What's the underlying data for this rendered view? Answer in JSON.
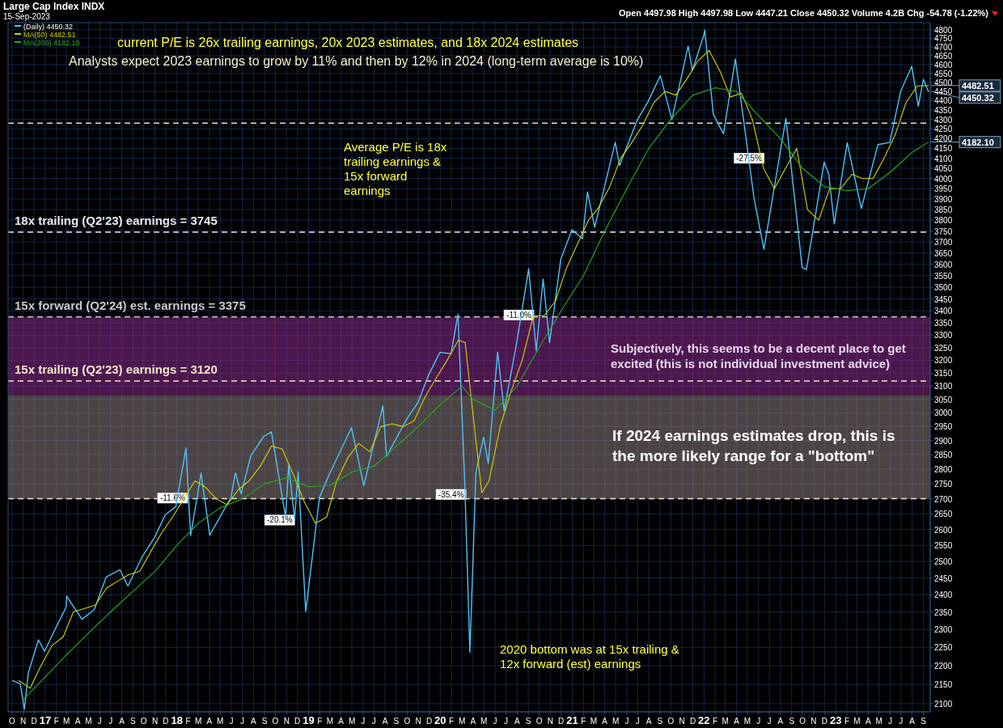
{
  "chart_data": {
    "type": "line",
    "title": "Large Cap Index INDX",
    "subtitle": "15-Sep-2023",
    "log": true,
    "grid": true,
    "legend": "top left",
    "tick_labels": "xy",
    "xlim": [
      "2016-09-20",
      "2023-09-20"
    ],
    "ylim": [
      2079,
      4842
    ],
    "xticks": [
      {
        "value": "2016-10",
        "label": "O"
      },
      {
        "value": "2016-11",
        "label": "N"
      },
      {
        "value": "2016-12",
        "label": "D"
      },
      {
        "value": "2017-01",
        "label": "17"
      },
      {
        "value": "2017-02",
        "label": "F"
      },
      {
        "value": "2017-03",
        "label": "M"
      },
      {
        "value": "2017-04",
        "label": "A"
      },
      {
        "value": "2017-05",
        "label": "M"
      },
      {
        "value": "2017-06",
        "label": "J"
      },
      {
        "value": "2017-07",
        "label": "J"
      },
      {
        "value": "2017-08",
        "label": "A"
      },
      {
        "value": "2017-09",
        "label": "S"
      },
      {
        "value": "2017-10",
        "label": "O"
      },
      {
        "value": "2017-11",
        "label": "N"
      },
      {
        "value": "2017-12",
        "label": "D"
      },
      {
        "value": "2018-01",
        "label": "18"
      },
      {
        "value": "2018-02",
        "label": "F"
      },
      {
        "value": "2018-03",
        "label": "M"
      },
      {
        "value": "2018-04",
        "label": "A"
      },
      {
        "value": "2018-05",
        "label": "M"
      },
      {
        "value": "2018-06",
        "label": "J"
      },
      {
        "value": "2018-07",
        "label": "J"
      },
      {
        "value": "2018-08",
        "label": "A"
      },
      {
        "value": "2018-09",
        "label": "S"
      },
      {
        "value": "2018-10",
        "label": "O"
      },
      {
        "value": "2018-11",
        "label": "N"
      },
      {
        "value": "2018-12",
        "label": "D"
      },
      {
        "value": "2019-01",
        "label": "19"
      },
      {
        "value": "2019-02",
        "label": "F"
      },
      {
        "value": "2019-03",
        "label": "M"
      },
      {
        "value": "2019-04",
        "label": "A"
      },
      {
        "value": "2019-05",
        "label": "M"
      },
      {
        "value": "2019-06",
        "label": "J"
      },
      {
        "value": "2019-07",
        "label": "J"
      },
      {
        "value": "2019-08",
        "label": "A"
      },
      {
        "value": "2019-09",
        "label": "S"
      },
      {
        "value": "2019-10",
        "label": "O"
      },
      {
        "value": "2019-11",
        "label": "N"
      },
      {
        "value": "2019-12",
        "label": "D"
      },
      {
        "value": "2020-01",
        "label": "20"
      },
      {
        "value": "2020-02",
        "label": "F"
      },
      {
        "value": "2020-03",
        "label": "M"
      },
      {
        "value": "2020-04",
        "label": "A"
      },
      {
        "value": "2020-05",
        "label": "M"
      },
      {
        "value": "2020-06",
        "label": "J"
      },
      {
        "value": "2020-07",
        "label": "J"
      },
      {
        "value": "2020-08",
        "label": "A"
      },
      {
        "value": "2020-09",
        "label": "S"
      },
      {
        "value": "2020-10",
        "label": "O"
      },
      {
        "value": "2020-11",
        "label": "N"
      },
      {
        "value": "2020-12",
        "label": "D"
      },
      {
        "value": "2021-01",
        "label": "21"
      },
      {
        "value": "2021-02",
        "label": "F"
      },
      {
        "value": "2021-03",
        "label": "M"
      },
      {
        "value": "2021-04",
        "label": "A"
      },
      {
        "value": "2021-05",
        "label": "M"
      },
      {
        "value": "2021-06",
        "label": "J"
      },
      {
        "value": "2021-07",
        "label": "J"
      },
      {
        "value": "2021-08",
        "label": "A"
      },
      {
        "value": "2021-09",
        "label": "S"
      },
      {
        "value": "2021-10",
        "label": "O"
      },
      {
        "value": "2021-11",
        "label": "N"
      },
      {
        "value": "2021-12",
        "label": "D"
      },
      {
        "value": "2022-01",
        "label": "22"
      },
      {
        "value": "2022-02",
        "label": "F"
      },
      {
        "value": "2022-03",
        "label": "M"
      },
      {
        "value": "2022-04",
        "label": "A"
      },
      {
        "value": "2022-05",
        "label": "M"
      },
      {
        "value": "2022-06",
        "label": "J"
      },
      {
        "value": "2022-07",
        "label": "J"
      },
      {
        "value": "2022-08",
        "label": "A"
      },
      {
        "value": "2022-09",
        "label": "S"
      },
      {
        "value": "2022-10",
        "label": "O"
      },
      {
        "value": "2022-11",
        "label": "N"
      },
      {
        "value": "2022-12",
        "label": "D"
      },
      {
        "value": "2023-01",
        "label": "23"
      },
      {
        "value": "2023-02",
        "label": "F"
      },
      {
        "value": "2023-03",
        "label": "M"
      },
      {
        "value": "2023-04",
        "label": "A"
      },
      {
        "value": "2023-05",
        "label": "M"
      },
      {
        "value": "2023-06",
        "label": "J"
      },
      {
        "value": "2023-07",
        "label": "J"
      },
      {
        "value": "2023-08",
        "label": "A"
      },
      {
        "value": "2023-09",
        "label": "S"
      }
    ],
    "yticks": [
      2100,
      2150,
      2200,
      2250,
      2300,
      2350,
      2400,
      2450,
      2500,
      2550,
      2600,
      2650,
      2700,
      2750,
      2800,
      2850,
      2900,
      2950,
      3000,
      3050,
      3100,
      3150,
      3200,
      3250,
      3300,
      3350,
      3400,
      3450,
      3500,
      3550,
      3600,
      3650,
      3700,
      3750,
      3800,
      3850,
      3900,
      3950,
      4000,
      4050,
      4100,
      4150,
      4200,
      4250,
      4300,
      4350,
      4400,
      4450,
      4500,
      4550,
      4600,
      4650,
      4700,
      4750,
      4800
    ],
    "series": [
      {
        "name": "(Daily) 4450.32",
        "color": "#4fc3f7",
        "x": [
          "2016-10-03",
          "2016-10-24",
          "2016-11-04",
          "2016-11-15",
          "2016-12-13",
          "2016-12-30",
          "2017-01-26",
          "2017-02-28",
          "2017-03-01",
          "2017-04-13",
          "2017-05-17",
          "2017-06-19",
          "2017-07-27",
          "2017-08-18",
          "2017-09-29",
          "2017-10-31",
          "2017-11-30",
          "2017-12-29",
          "2018-01-26",
          "2018-02-08",
          "2018-03-09",
          "2018-04-02",
          "2018-05-31",
          "2018-06-12",
          "2018-06-28",
          "2018-07-25",
          "2018-08-29",
          "2018-09-20",
          "2018-10-29",
          "2018-11-07",
          "2018-11-23",
          "2018-12-03",
          "2018-12-24",
          "2019-01-31",
          "2019-02-28",
          "2019-04-30",
          "2019-06-03",
          "2019-07-26",
          "2019-08-05",
          "2019-09-30",
          "2019-10-31",
          "2019-11-29",
          "2019-12-31",
          "2020-01-31",
          "2020-02-19",
          "2020-03-09",
          "2020-03-23",
          "2020-04-09",
          "2020-04-30",
          "2020-05-13",
          "2020-06-08",
          "2020-06-26",
          "2020-07-31",
          "2020-09-02",
          "2020-09-23",
          "2020-10-12",
          "2020-10-30",
          "2020-11-30",
          "2020-12-31",
          "2021-01-29",
          "2021-02-12",
          "2021-03-04",
          "2021-04-30",
          "2021-05-12",
          "2021-06-30",
          "2021-07-30",
          "2021-09-02",
          "2021-10-04",
          "2021-11-18",
          "2021-11-30",
          "2021-12-31",
          "2022-01-03",
          "2022-01-27",
          "2022-02-24",
          "2022-03-29",
          "2022-05-20",
          "2022-06-16",
          "2022-08-16",
          "2022-09-30",
          "2022-10-12",
          "2022-11-30",
          "2022-12-13",
          "2022-12-28",
          "2023-02-02",
          "2023-03-13",
          "2023-04-28",
          "2023-05-31",
          "2023-06-30",
          "2023-07-31",
          "2023-08-18",
          "2023-09-01",
          "2023-09-15"
        ],
        "values": [
          2160,
          2151,
          2085,
          2180,
          2271,
          2239,
          2296,
          2364,
          2396,
          2329,
          2357,
          2453,
          2475,
          2426,
          2519,
          2575,
          2648,
          2674,
          2873,
          2581,
          2786,
          2582,
          2705,
          2787,
          2716,
          2846,
          2914,
          2931,
          2641,
          2814,
          2633,
          2790,
          2351,
          2704,
          2784,
          2946,
          2744,
          3026,
          2844,
          2977,
          3038,
          3141,
          3231,
          3226,
          3386,
          2747,
          2237,
          2790,
          2912,
          2820,
          3232,
          3009,
          3271,
          3580,
          3237,
          3535,
          3270,
          3622,
          3756,
          3714,
          3934,
          3768,
          4181,
          4063,
          4297,
          4395,
          4537,
          4300,
          4704,
          4567,
          4766,
          4797,
          4326,
          4225,
          4631,
          3901,
          3667,
          4305,
          3586,
          3577,
          4080,
          4019,
          3783,
          4179,
          3855,
          4169,
          4180,
          4450,
          4589,
          4370,
          4516,
          4450
        ]
      },
      {
        "name": "MA(50) 4482.51",
        "color": "#d4d400",
        "x": [
          "2016-10-20",
          "2016-11-20",
          "2016-12-20",
          "2017-01-20",
          "2017-02-20",
          "2017-03-20",
          "2017-04-20",
          "2017-05-20",
          "2017-06-20",
          "2017-07-20",
          "2017-08-20",
          "2017-09-20",
          "2017-10-20",
          "2017-11-20",
          "2017-12-20",
          "2018-01-20",
          "2018-02-20",
          "2018-03-20",
          "2018-04-20",
          "2018-05-20",
          "2018-06-20",
          "2018-07-20",
          "2018-08-20",
          "2018-09-20",
          "2018-10-20",
          "2018-11-20",
          "2018-12-20",
          "2019-01-20",
          "2019-02-20",
          "2019-03-20",
          "2019-04-20",
          "2019-05-20",
          "2019-06-20",
          "2019-07-20",
          "2019-08-20",
          "2019-09-20",
          "2019-10-20",
          "2019-11-20",
          "2019-12-20",
          "2020-01-20",
          "2020-02-20",
          "2020-03-10",
          "2020-04-01",
          "2020-04-25",
          "2020-05-15",
          "2020-06-15",
          "2020-07-15",
          "2020-08-15",
          "2020-09-15",
          "2020-10-15",
          "2020-11-15",
          "2020-12-15",
          "2021-01-15",
          "2021-02-15",
          "2021-03-15",
          "2021-04-15",
          "2021-05-15",
          "2021-06-15",
          "2021-07-15",
          "2021-08-15",
          "2021-09-15",
          "2021-10-15",
          "2021-11-15",
          "2021-12-15",
          "2022-01-15",
          "2022-02-15",
          "2022-03-15",
          "2022-04-15",
          "2022-05-15",
          "2022-06-15",
          "2022-07-15",
          "2022-08-15",
          "2022-09-15",
          "2022-10-15",
          "2022-11-15",
          "2022-12-15",
          "2023-01-15",
          "2023-02-15",
          "2023-03-15",
          "2023-04-15",
          "2023-05-15",
          "2023-06-15",
          "2023-07-15",
          "2023-08-15",
          "2023-09-15"
        ],
        "values": [
          2160,
          2140,
          2200,
          2255,
          2280,
          2350,
          2360,
          2370,
          2420,
          2440,
          2460,
          2470,
          2530,
          2590,
          2640,
          2700,
          2760,
          2740,
          2700,
          2680,
          2730,
          2760,
          2810,
          2880,
          2870,
          2780,
          2690,
          2620,
          2640,
          2760,
          2840,
          2890,
          2860,
          2950,
          2960,
          2950,
          2970,
          3060,
          3130,
          3200,
          3280,
          3270,
          2990,
          2720,
          2760,
          2950,
          3080,
          3200,
          3380,
          3380,
          3440,
          3580,
          3690,
          3800,
          3860,
          3960,
          4100,
          4180,
          4270,
          4390,
          4450,
          4430,
          4520,
          4620,
          4680,
          4560,
          4420,
          4440,
          4300,
          4050,
          3950,
          4050,
          4150,
          3850,
          3800,
          3950,
          3950,
          4020,
          4000,
          4000,
          4100,
          4220,
          4390,
          4480,
          4482.51
        ]
      },
      {
        "name": "MA(200) 4182.10",
        "color": "#22b022",
        "x": [
          "2016-11-01",
          "2016-12-01",
          "2017-01-01",
          "2017-03-01",
          "2017-05-01",
          "2017-07-01",
          "2017-09-01",
          "2017-11-01",
          "2018-01-01",
          "2018-03-01",
          "2018-05-01",
          "2018-07-01",
          "2018-09-01",
          "2018-11-01",
          "2019-01-01",
          "2019-03-01",
          "2019-05-01",
          "2019-07-01",
          "2019-09-01",
          "2019-11-01",
          "2020-01-01",
          "2020-03-01",
          "2020-04-01",
          "2020-06-01",
          "2020-08-01",
          "2020-10-01",
          "2020-12-01",
          "2021-02-01",
          "2021-04-01",
          "2021-06-01",
          "2021-08-01",
          "2021-10-01",
          "2021-12-01",
          "2022-02-01",
          "2022-04-01",
          "2022-06-01",
          "2022-08-01",
          "2022-10-01",
          "2022-12-01",
          "2023-02-01",
          "2023-04-01",
          "2023-06-01",
          "2023-08-01",
          "2023-09-15"
        ],
        "values": [
          2110,
          2140,
          2170,
          2230,
          2290,
          2350,
          2410,
          2470,
          2550,
          2620,
          2670,
          2700,
          2750,
          2770,
          2740,
          2745,
          2790,
          2810,
          2880,
          2950,
          3030,
          3100,
          3050,
          3010,
          3100,
          3250,
          3400,
          3550,
          3750,
          3950,
          4150,
          4300,
          4430,
          4470,
          4450,
          4320,
          4200,
          4050,
          3960,
          3940,
          3950,
          4030,
          4130,
          4182.1
        ]
      }
    ],
    "ref_lines": [
      {
        "axis": "y",
        "value": 4280,
        "label": null,
        "color": "#dddddd",
        "line_style": "dashed"
      },
      {
        "axis": "y",
        "value": 3745,
        "label": "18x trailing (Q2'23) earnings = 3745",
        "color": "#e8e8e8",
        "line_style": "dashed"
      },
      {
        "axis": "y",
        "value": 3375,
        "label": "15x forward (Q2'24) est. earnings = 3375",
        "color": "#c8c8c8",
        "line_style": "dashed"
      },
      {
        "axis": "y",
        "value": 3120,
        "label": "15x trailing (Q2'23) earnings = 3120",
        "color": "#f0e6c8",
        "line_style": "dashed"
      },
      {
        "axis": "y",
        "value": 2700,
        "label": null,
        "color": "#f0e6c8",
        "line_style": "dashed"
      }
    ],
    "bands": [
      {
        "axis": "y",
        "from": 3065,
        "to": 3375,
        "label": "Subjectively, this seems to be a decent place to get excited (this is not individual investment advice)",
        "color": "#8a2a8a"
      },
      {
        "axis": "y",
        "from": 2700,
        "to": 3065,
        "label": "If 2024 earnings estimates drop, this is the more likely range for a \"bottom\"",
        "color": "#8a7b7b"
      }
    ],
    "annotations": [
      "Open 4497.98 High 4497.98 Low 4447.21 Close 4450.32 Volume 4.2B Chg -54.78 (-1.22%)",
      "current P/E is 26x trailing earnings, 20x 2023 estimates, and 18x 2024 estimates",
      "Analysts expect 2023 earnings to grow by 11% and then by 12% in 2024 (long-term average is 10%)",
      "Average P/E is 18x trailing earnings & 15x forward earnings",
      "2020 bottom was at 15x trailing & 12x forward (est) earnings",
      {
        "text": "-11.6%",
        "x": "2017-12-20",
        "y": 2701
      },
      {
        "text": "-20.1%",
        "x": "2018-10-13",
        "y": 2629
      },
      {
        "text": "-35.4%",
        "x": "2020-01-31",
        "y": 2713
      },
      {
        "text": "-11.0%",
        "x": "2020-08-06",
        "y": 3381
      },
      {
        "text": "-27.5%",
        "x": "2022-05-06",
        "y": 4098
      },
      {
        "text": "4482.51",
        "x": "2023-09-15",
        "y": 4482.51
      },
      {
        "text": "4450.32",
        "x": "2023-09-15",
        "y": 4450.32
      },
      {
        "text": "4182.10",
        "x": "2023-09-15",
        "y": 4182.1
      }
    ]
  }
}
